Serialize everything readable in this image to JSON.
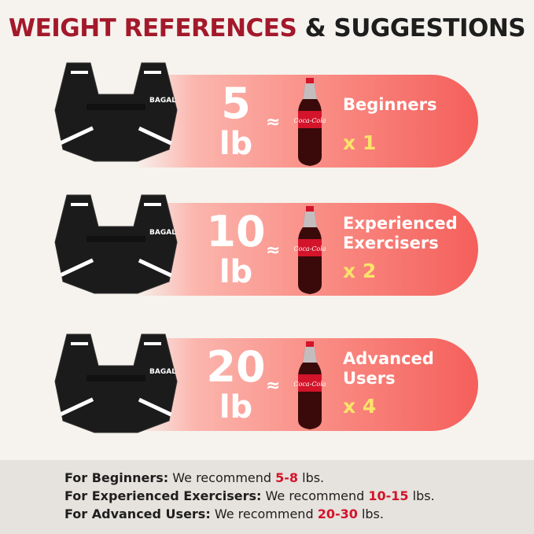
{
  "title": {
    "part1": "WEIGHT REFERENCES",
    "part2": " & SUGGESTIONS"
  },
  "colors": {
    "title_red": "#a3192b",
    "accent_red": "#d3142a",
    "multiplier_yellow": "#fbe36a"
  },
  "brand_logo": "BAGAL",
  "bottle_label": "Coca-Cola",
  "rows": [
    {
      "number": "5",
      "unit": "lb",
      "approx": "≈",
      "label_lines": [
        "Beginners"
      ],
      "multiplier": "x 1"
    },
    {
      "number": "10",
      "unit": "lb",
      "approx": "≈",
      "label_lines": [
        "Experienced",
        "Exercisers"
      ],
      "multiplier": "x 2"
    },
    {
      "number": "20",
      "unit": "lb",
      "approx": "≈",
      "label_lines": [
        "Advanced",
        "Users"
      ],
      "multiplier": "x 4"
    }
  ],
  "recommendations": [
    {
      "lead": "For Beginners:",
      "text": " We recommend ",
      "range": "5-8",
      "unit": " lbs."
    },
    {
      "lead": "For Experienced Exercisers:",
      "text": " We recommend ",
      "range": "10-15",
      "unit": " lbs."
    },
    {
      "lead": "For Advanced Users:",
      "text": " We recommend ",
      "range": "20-30",
      "unit": " lbs."
    }
  ]
}
